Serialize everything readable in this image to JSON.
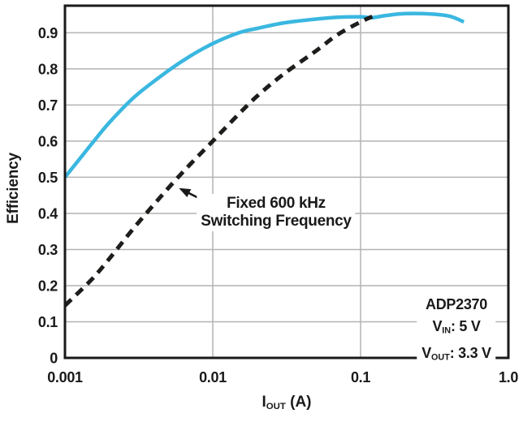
{
  "figure": {
    "background": "#ffffff",
    "frame_color": "#1a1a1a",
    "grid_color": "#b3b3b3",
    "text_color": "#1a1a1a"
  },
  "chart_data": {
    "type": "line",
    "title": "",
    "x_scale": "log",
    "ylabel": "Efficiency",
    "xlabel_segments": [
      {
        "text": "I"
      },
      {
        "text": "OUT",
        "sub": true
      },
      {
        "text": " (A)"
      }
    ],
    "xlim": [
      0.001,
      1.0
    ],
    "ylim": [
      0,
      0.975
    ],
    "grid": true,
    "legend_position": "none",
    "x_ticks": [
      {
        "v": 0.001,
        "label": "0.001"
      },
      {
        "v": 0.01,
        "label": "0.01"
      },
      {
        "v": 0.1,
        "label": "0.1"
      },
      {
        "v": 1.0,
        "label": "1.0"
      }
    ],
    "y_ticks": [
      {
        "v": 0,
        "label": "0"
      },
      {
        "v": 0.1,
        "label": "0.1"
      },
      {
        "v": 0.2,
        "label": "0.2"
      },
      {
        "v": 0.3,
        "label": "0.3"
      },
      {
        "v": 0.4,
        "label": "0.4"
      },
      {
        "v": 0.5,
        "label": "0.5"
      },
      {
        "v": 0.6,
        "label": "0.6"
      },
      {
        "v": 0.7,
        "label": "0.7"
      },
      {
        "v": 0.8,
        "label": "0.8"
      },
      {
        "v": 0.9,
        "label": "0.9"
      }
    ],
    "series": [
      {
        "name": "unlabeled-solid-curve",
        "color": "#3ab7e0",
        "line_style": "solid",
        "stroke_width": 4.5,
        "points": [
          [
            0.001,
            0.5
          ],
          [
            0.0015,
            0.59
          ],
          [
            0.002,
            0.652
          ],
          [
            0.003,
            0.725
          ],
          [
            0.005,
            0.795
          ],
          [
            0.007,
            0.835
          ],
          [
            0.01,
            0.87
          ],
          [
            0.015,
            0.9
          ],
          [
            0.02,
            0.912
          ],
          [
            0.03,
            0.927
          ],
          [
            0.05,
            0.938
          ],
          [
            0.07,
            0.943
          ],
          [
            0.1,
            0.944
          ],
          [
            0.12,
            0.942
          ],
          [
            0.15,
            0.948
          ],
          [
            0.2,
            0.953
          ],
          [
            0.3,
            0.952
          ],
          [
            0.4,
            0.946
          ],
          [
            0.5,
            0.93
          ]
        ]
      },
      {
        "name": "fixed-600khz-dashed-curve",
        "color": "#1d1d1b",
        "line_style": "dashed",
        "stroke_width": 5,
        "points": [
          [
            0.001,
            0.145
          ],
          [
            0.0015,
            0.215
          ],
          [
            0.002,
            0.275
          ],
          [
            0.003,
            0.365
          ],
          [
            0.005,
            0.47
          ],
          [
            0.007,
            0.535
          ],
          [
            0.01,
            0.6
          ],
          [
            0.015,
            0.675
          ],
          [
            0.02,
            0.725
          ],
          [
            0.03,
            0.785
          ],
          [
            0.05,
            0.85
          ],
          [
            0.07,
            0.895
          ],
          [
            0.1,
            0.93
          ],
          [
            0.12,
            0.945
          ]
        ]
      }
    ],
    "annotations": {
      "callout": {
        "lines": [
          "Fixed 600 kHz",
          "Switching Frequency"
        ],
        "arrow_tip": [
          0.0059,
          0.47
        ],
        "arrow_tail": [
          0.0101,
          0.422
        ]
      },
      "info_box": {
        "lines": [
          [
            {
              "text": "ADP2370"
            }
          ],
          [
            {
              "text": "V"
            },
            {
              "text": "IN",
              "sub": true
            },
            {
              "text": ": 5 V"
            }
          ],
          [
            {
              "text": "V"
            },
            {
              "text": "OUT",
              "sub": true
            },
            {
              "text": ": 3.3 V"
            }
          ]
        ]
      }
    }
  }
}
